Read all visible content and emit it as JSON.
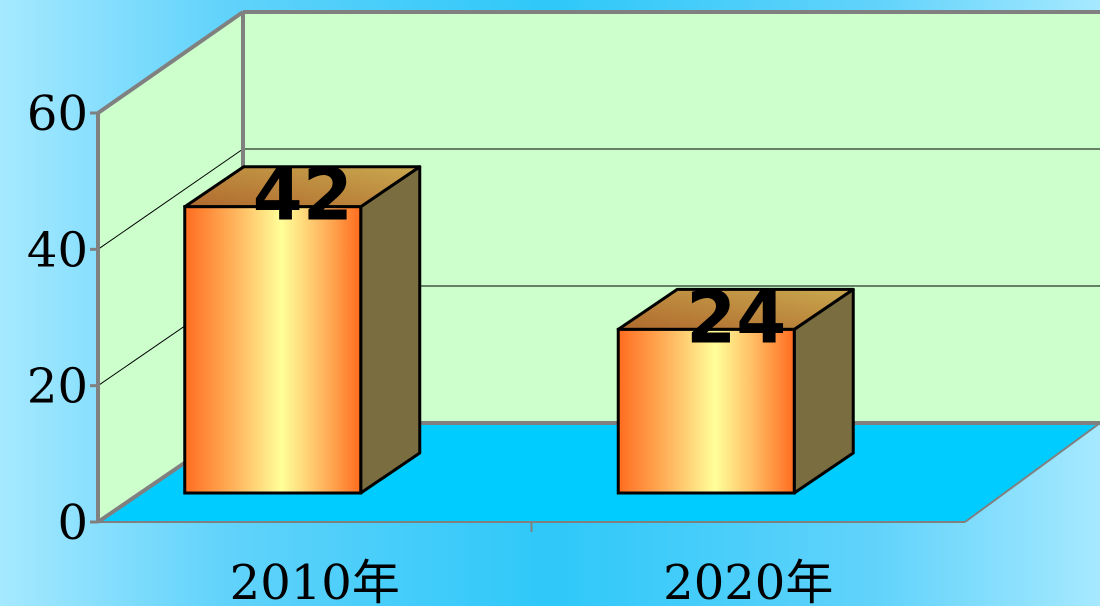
{
  "colors": {
    "wall": "#ccffcc",
    "floor": "#00ccff",
    "frame": "#808080",
    "bar_front_center": "#ffff99",
    "bar_front_edge": "#ff6c1f",
    "bar_side": "#7a6d40",
    "bar_top": "#c9a84e"
  },
  "chart_data": {
    "type": "bar",
    "categories": [
      "2010年",
      "2020年"
    ],
    "values": [
      42,
      24
    ],
    "data_labels": [
      "42",
      "24"
    ],
    "title": "",
    "xlabel": "",
    "ylabel": "",
    "ylim": [
      0,
      60
    ],
    "yticks": [
      "0",
      "20",
      "40",
      "60"
    ],
    "grid": true,
    "three_d": true,
    "legend": "none"
  }
}
